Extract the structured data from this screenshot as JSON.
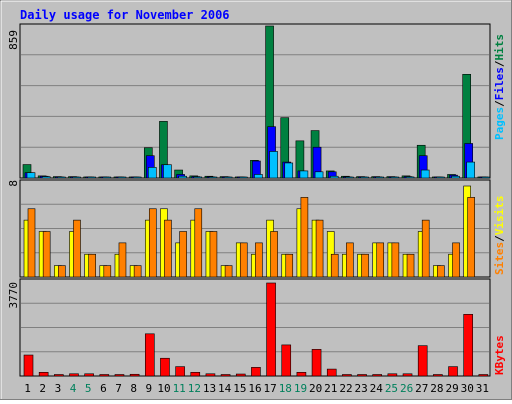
{
  "chart_data": [
    {
      "type": "bar",
      "title": "Daily usage for November 2006",
      "panel": "hits-files-pages",
      "ymax_label": "859",
      "ylim": [
        0,
        859
      ],
      "categories": [
        "1",
        "2",
        "3",
        "4",
        "5",
        "6",
        "7",
        "8",
        "9",
        "10",
        "11",
        "12",
        "13",
        "14",
        "15",
        "16",
        "17",
        "18",
        "19",
        "20",
        "21",
        "22",
        "23",
        "24",
        "25",
        "26",
        "27",
        "28",
        "29",
        "30",
        "31"
      ],
      "weekend_days": [
        "4",
        "5",
        "11",
        "12",
        "18",
        "19",
        "25",
        "26"
      ],
      "side_label": [
        "Pages",
        "Files",
        "Hits"
      ],
      "series": [
        {
          "name": "Hits",
          "color": "#008040",
          "values": [
            76,
            12,
            8,
            8,
            6,
            6,
            6,
            6,
            171,
            320,
            45,
            12,
            10,
            8,
            6,
            100,
            859,
            341,
            210,
            268,
            40,
            10,
            8,
            8,
            8,
            12,
            185,
            6,
            20,
            586,
            6
          ]
        },
        {
          "name": "Files",
          "color": "#0000ff",
          "values": [
            30,
            10,
            6,
            6,
            4,
            4,
            4,
            4,
            126,
            75,
            20,
            8,
            6,
            6,
            4,
            96,
            290,
            90,
            40,
            174,
            35,
            6,
            6,
            6,
            6,
            8,
            126,
            4,
            16,
            195,
            4
          ]
        },
        {
          "name": "Pages",
          "color": "#00c0ff",
          "values": [
            30,
            8,
            4,
            4,
            4,
            4,
            4,
            4,
            60,
            75,
            10,
            6,
            4,
            4,
            4,
            20,
            150,
            85,
            40,
            35,
            10,
            4,
            4,
            4,
            4,
            6,
            45,
            4,
            10,
            90,
            4
          ]
        }
      ]
    },
    {
      "type": "bar",
      "panel": "visits-sites",
      "ymax_label": "8",
      "ylim": [
        0,
        8
      ],
      "categories": [
        "1",
        "2",
        "3",
        "4",
        "5",
        "6",
        "7",
        "8",
        "9",
        "10",
        "11",
        "12",
        "13",
        "14",
        "15",
        "16",
        "17",
        "18",
        "19",
        "20",
        "21",
        "22",
        "23",
        "24",
        "25",
        "26",
        "27",
        "28",
        "29",
        "30",
        "31"
      ],
      "side_label": [
        "Sites",
        "Visits"
      ],
      "series": [
        {
          "name": "Visits",
          "color": "#ffff00",
          "values": [
            5,
            4,
            1,
            4,
            2,
            1,
            2,
            1,
            5,
            6,
            3,
            5,
            4,
            1,
            3,
            2,
            5,
            2,
            6,
            5,
            4,
            2,
            2,
            3,
            3,
            2,
            4,
            1,
            2,
            8,
            0
          ]
        },
        {
          "name": "Sites",
          "color": "#ff8000",
          "values": [
            6,
            4,
            1,
            5,
            2,
            1,
            3,
            1,
            6,
            5,
            4,
            6,
            4,
            1,
            3,
            3,
            4,
            2,
            7,
            5,
            2,
            3,
            2,
            3,
            3,
            2,
            5,
            1,
            3,
            7,
            0
          ]
        }
      ]
    },
    {
      "type": "bar",
      "panel": "kbytes",
      "ymax_label": "3770",
      "ylim": [
        0,
        3770
      ],
      "categories": [
        "1",
        "2",
        "3",
        "4",
        "5",
        "6",
        "7",
        "8",
        "9",
        "10",
        "11",
        "12",
        "13",
        "14",
        "15",
        "16",
        "17",
        "18",
        "19",
        "20",
        "21",
        "22",
        "23",
        "24",
        "25",
        "26",
        "27",
        "28",
        "29",
        "30",
        "31"
      ],
      "side_label": [
        "KBytes"
      ],
      "series": [
        {
          "name": "KBytes",
          "color": "#ff0000",
          "values": [
            850,
            150,
            60,
            90,
            90,
            30,
            30,
            70,
            1710,
            720,
            380,
            150,
            90,
            30,
            80,
            350,
            3770,
            1260,
            150,
            1080,
            280,
            30,
            30,
            40,
            90,
            90,
            1230,
            30,
            380,
            2500,
            20
          ]
        }
      ]
    }
  ],
  "colors": {
    "frame": "#c0c0c0",
    "title_text": "#0000ff",
    "weekend_label": "#00805c",
    "gridline": "#808080",
    "bar_outline": "#000000"
  }
}
